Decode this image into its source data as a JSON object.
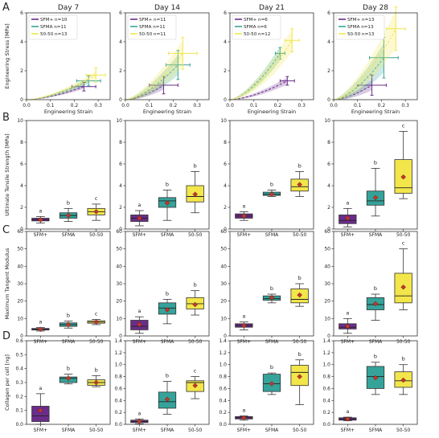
{
  "panel_letters": [
    "A",
    "B",
    "C",
    "D"
  ],
  "columns": [
    "Day 7",
    "Day 14",
    "Day 21",
    "Day 28"
  ],
  "groups": [
    "SFM+",
    "SFMA",
    "50-50"
  ],
  "colors": {
    "SFM+": "#6b2c8a",
    "SFMA": "#35a39a",
    "50-50": "#f2e64a",
    "mean_marker": "#c0392b",
    "axis": "#333333"
  },
  "chart_data": [
    {
      "panel": "A",
      "type": "line",
      "xlabel": "Engineering Strain",
      "ylabel": "Engineering Stress [MPa]",
      "xlim": [
        0,
        0.35
      ],
      "ylim": [
        0,
        6
      ],
      "xticks": [
        "0.0",
        "0.1",
        "0.2",
        "0.3"
      ],
      "yticks": [
        "0",
        "2",
        "4",
        "6"
      ],
      "subplots": [
        {
          "title": "Day 7",
          "legend": [
            "SFM+ n=10",
            "SFMA n=11",
            "50-50 n=13"
          ],
          "series": [
            {
              "name": "SFM+",
              "end": {
                "x": 0.24,
                "y": 0.9,
                "xerr": 0.05,
                "yerr": 0.3
              },
              "band": 0.15
            },
            {
              "name": "SFMA",
              "end": {
                "x": 0.26,
                "y": 1.3,
                "xerr": 0.05,
                "yerr": 0.35
              },
              "band": 0.2
            },
            {
              "name": "50-50",
              "end": {
                "x": 0.29,
                "y": 1.7,
                "xerr": 0.04,
                "yerr": 0.5
              },
              "band": 0.25
            }
          ]
        },
        {
          "title": "Day 14",
          "legend": [
            "SFM+ n=11",
            "SFMA n=11",
            "50-50 n=11"
          ],
          "series": [
            {
              "name": "SFM+",
              "end": {
                "x": 0.16,
                "y": 1.0,
                "xerr": 0.06,
                "yerr": 0.6
              },
              "band": 0.3
            },
            {
              "name": "SFMA",
              "end": {
                "x": 0.22,
                "y": 2.4,
                "xerr": 0.05,
                "yerr": 1.0
              },
              "band": 0.7
            },
            {
              "name": "50-50",
              "end": {
                "x": 0.24,
                "y": 3.2,
                "xerr": 0.06,
                "yerr": 1.1
              },
              "band": 0.9
            }
          ]
        },
        {
          "title": "Day 21",
          "legend": [
            "SFM+ n=6",
            "SFMA n=6",
            "50-50 n=12"
          ],
          "series": [
            {
              "name": "SFM+",
              "end": {
                "x": 0.24,
                "y": 1.3,
                "xerr": 0.03,
                "yerr": 0.3
              },
              "band": 0.25
            },
            {
              "name": "SFMA",
              "end": {
                "x": 0.21,
                "y": 3.2,
                "xerr": 0.02,
                "yerr": 0.4
              },
              "band": 0.5
            },
            {
              "name": "50-50",
              "end": {
                "x": 0.26,
                "y": 4.1,
                "xerr": 0.03,
                "yerr": 0.8
              },
              "band": 0.8
            }
          ]
        },
        {
          "title": "Day 28",
          "legend": [
            "SFM+ n=13",
            "SFMA n=13",
            "50-50 n=13"
          ],
          "series": [
            {
              "name": "SFM+",
              "end": {
                "x": 0.16,
                "y": 1.0,
                "xerr": 0.06,
                "yerr": 0.7
              },
              "band": 0.35
            },
            {
              "name": "SFMA",
              "end": {
                "x": 0.21,
                "y": 2.9,
                "xerr": 0.06,
                "yerr": 1.4
              },
              "band": 1.0
            },
            {
              "name": "50-50",
              "end": {
                "x": 0.26,
                "y": 4.9,
                "xerr": 0.04,
                "yerr": 1.5
              },
              "band": 1.3
            }
          ]
        }
      ]
    },
    {
      "panel": "B",
      "type": "box",
      "ylabel": "Ultimate Tensile Strength [MPa]",
      "ylim": [
        0,
        10
      ],
      "yticks": [
        "0",
        "2",
        "4",
        "6",
        "8",
        "10"
      ],
      "subplots": [
        {
          "title": "Day 7",
          "boxes": [
            {
              "group": "SFM+",
              "whislo": 0.55,
              "q1": 0.75,
              "med": 0.85,
              "q3": 1.0,
              "whishi": 1.15,
              "mean": 0.85,
              "letter": "a"
            },
            {
              "group": "SFMA",
              "whislo": 0.7,
              "q1": 1.0,
              "med": 1.25,
              "q3": 1.5,
              "whishi": 1.9,
              "mean": 1.25,
              "letter": "b"
            },
            {
              "group": "50-50",
              "whislo": 0.8,
              "q1": 1.3,
              "med": 1.6,
              "q3": 1.9,
              "whishi": 2.3,
              "mean": 1.6,
              "letter": "c"
            }
          ]
        },
        {
          "title": "Day 14",
          "boxes": [
            {
              "group": "SFM+",
              "whislo": 0.3,
              "q1": 0.7,
              "med": 1.0,
              "q3": 1.3,
              "whishi": 1.7,
              "mean": 1.0,
              "letter": "a"
            },
            {
              "group": "SFMA",
              "whislo": 0.8,
              "q1": 2.0,
              "med": 2.6,
              "q3": 2.9,
              "whishi": 3.6,
              "mean": 2.4,
              "letter": "b"
            },
            {
              "group": "50-50",
              "whislo": 1.5,
              "q1": 2.5,
              "med": 3.0,
              "q3": 4.0,
              "whishi": 5.3,
              "mean": 3.2,
              "letter": "b"
            }
          ]
        },
        {
          "title": "Day 21",
          "boxes": [
            {
              "group": "SFM+",
              "whislo": 0.8,
              "q1": 1.0,
              "med": 1.2,
              "q3": 1.4,
              "whishi": 1.6,
              "mean": 1.2,
              "letter": "a"
            },
            {
              "group": "SFMA",
              "whislo": 3.0,
              "q1": 3.1,
              "med": 3.2,
              "q3": 3.4,
              "whishi": 3.6,
              "mean": 3.2,
              "letter": "b"
            },
            {
              "group": "50-50",
              "whislo": 3.0,
              "q1": 3.5,
              "med": 3.9,
              "q3": 4.6,
              "whishi": 5.3,
              "mean": 4.1,
              "letter": "b"
            }
          ]
        },
        {
          "title": "Day 28",
          "boxes": [
            {
              "group": "SFM+",
              "whislo": 0.2,
              "q1": 0.5,
              "med": 0.8,
              "q3": 1.3,
              "whishi": 1.9,
              "mean": 1.0,
              "letter": "a"
            },
            {
              "group": "SFMA",
              "whislo": 1.2,
              "q1": 2.2,
              "med": 2.6,
              "q3": 3.5,
              "whishi": 5.6,
              "mean": 2.9,
              "letter": "b"
            },
            {
              "group": "50-50",
              "whislo": 2.8,
              "q1": 3.3,
              "med": 3.8,
              "q3": 6.4,
              "whishi": 9.0,
              "mean": 4.8,
              "letter": "c"
            }
          ]
        }
      ]
    },
    {
      "panel": "C",
      "type": "box",
      "ylabel": "Maximum Tangent Modulus",
      "ylim": [
        0,
        60
      ],
      "yticks": [
        "0",
        "10",
        "20",
        "30",
        "40",
        "50",
        "60"
      ],
      "subplots": [
        {
          "title": "Day 7",
          "boxes": [
            {
              "group": "SFM+",
              "whislo": 2.8,
              "q1": 3.4,
              "med": 3.8,
              "q3": 4.3,
              "whishi": 4.8,
              "mean": 3.8,
              "letter": "a"
            },
            {
              "group": "SFMA",
              "whislo": 4.5,
              "q1": 5.5,
              "med": 6.5,
              "q3": 7.5,
              "whishi": 8.5,
              "mean": 6.5,
              "letter": "b"
            },
            {
              "group": "50-50",
              "whislo": 6.5,
              "q1": 7.3,
              "med": 8.0,
              "q3": 8.7,
              "whishi": 9.5,
              "mean": 8.0,
              "letter": "c"
            }
          ]
        },
        {
          "title": "Day 14",
          "boxes": [
            {
              "group": "SFM+",
              "whislo": 1.5,
              "q1": 3.5,
              "med": 5.5,
              "q3": 9.0,
              "whishi": 11.0,
              "mean": 6.5,
              "letter": "a"
            },
            {
              "group": "SFMA",
              "whislo": 7.0,
              "q1": 12.5,
              "med": 16.0,
              "q3": 19.0,
              "whishi": 21.0,
              "mean": 15.0,
              "letter": "b"
            },
            {
              "group": "50-50",
              "whislo": 12.0,
              "q1": 15.5,
              "med": 18.5,
              "q3": 22.0,
              "whishi": 26.0,
              "mean": 18.0,
              "letter": "b"
            }
          ]
        },
        {
          "title": "Day 21",
          "boxes": [
            {
              "group": "SFM+",
              "whislo": 3.5,
              "q1": 5.0,
              "med": 6.0,
              "q3": 7.0,
              "whishi": 8.0,
              "mean": 6.0,
              "letter": "a"
            },
            {
              "group": "SFMA",
              "whislo": 19.0,
              "q1": 20.5,
              "med": 21.5,
              "q3": 23.0,
              "whishi": 24.0,
              "mean": 22.0,
              "letter": "b"
            },
            {
              "group": "50-50",
              "whislo": 17.0,
              "q1": 19.0,
              "med": 21.0,
              "q3": 27.0,
              "whishi": 30.0,
              "mean": 23.5,
              "letter": "b"
            }
          ]
        },
        {
          "title": "Day 28",
          "boxes": [
            {
              "group": "SFM+",
              "whislo": 1.5,
              "q1": 4.0,
              "med": 5.0,
              "q3": 7.0,
              "whishi": 10.0,
              "mean": 5.5,
              "letter": "a"
            },
            {
              "group": "SFMA",
              "whislo": 9.0,
              "q1": 15.0,
              "med": 18.0,
              "q3": 22.0,
              "whishi": 24.0,
              "mean": 18.5,
              "letter": "b"
            },
            {
              "group": "50-50",
              "whislo": 15.0,
              "q1": 19.0,
              "med": 23.0,
              "q3": 36.0,
              "whishi": 50.0,
              "mean": 28.0,
              "letter": "c"
            }
          ]
        }
      ]
    },
    {
      "panel": "D",
      "type": "box",
      "ylabel": "Collagen per cell [ng]",
      "xticks": [
        "SFM+",
        "SFMA",
        "50-50"
      ],
      "subplots": [
        {
          "title": "Day 7",
          "ylim": [
            0,
            0.6
          ],
          "yticks": [
            "0.0",
            "0.1",
            "0.2",
            "0.3",
            "0.4",
            "0.5",
            "0.6"
          ],
          "boxes": [
            {
              "group": "SFM+",
              "whislo": 0.0,
              "q1": 0.02,
              "med": 0.06,
              "q3": 0.13,
              "whishi": 0.22,
              "mean": 0.1,
              "letter": "a"
            },
            {
              "group": "SFMA",
              "whislo": 0.29,
              "q1": 0.3,
              "med": 0.33,
              "q3": 0.34,
              "whishi": 0.36,
              "mean": 0.33,
              "letter": "b"
            },
            {
              "group": "50-50",
              "whislo": 0.27,
              "q1": 0.28,
              "med": 0.3,
              "q3": 0.32,
              "whishi": 0.35,
              "mean": 0.3,
              "letter": "b"
            }
          ]
        },
        {
          "title": "Day 14",
          "ylim": [
            0,
            1.4
          ],
          "yticks": [
            "0.0",
            "0.2",
            "0.4",
            "0.6",
            "0.8",
            "1.0",
            "1.2",
            "1.4"
          ],
          "boxes": [
            {
              "group": "SFM+",
              "whislo": 0.01,
              "q1": 0.03,
              "med": 0.05,
              "q3": 0.07,
              "whishi": 0.09,
              "mean": 0.05,
              "letter": "a"
            },
            {
              "group": "SFMA",
              "whislo": 0.17,
              "q1": 0.27,
              "med": 0.38,
              "q3": 0.54,
              "whishi": 0.72,
              "mean": 0.42,
              "letter": "b"
            },
            {
              "group": "50-50",
              "whislo": 0.43,
              "q1": 0.55,
              "med": 0.7,
              "q3": 0.73,
              "whishi": 0.8,
              "mean": 0.65,
              "letter": "c"
            }
          ]
        },
        {
          "title": "Day 21",
          "ylim": [
            0,
            1.4
          ],
          "yticks": [
            "0.0",
            "0.2",
            "0.4",
            "0.6",
            "0.8",
            "1.0",
            "1.2",
            "1.4"
          ],
          "boxes": [
            {
              "group": "SFM+",
              "whislo": 0.07,
              "q1": 0.09,
              "med": 0.11,
              "q3": 0.13,
              "whishi": 0.14,
              "mean": 0.11,
              "letter": "a"
            },
            {
              "group": "SFMA",
              "whislo": 0.5,
              "q1": 0.55,
              "med": 0.68,
              "q3": 0.84,
              "whishi": 0.86,
              "mean": 0.68,
              "letter": "b"
            },
            {
              "group": "50-50",
              "whislo": 0.33,
              "q1": 0.65,
              "med": 0.87,
              "q3": 0.99,
              "whishi": 1.08,
              "mean": 0.8,
              "letter": "b"
            }
          ]
        },
        {
          "title": "Day 28",
          "ylim": [
            0,
            1.4
          ],
          "yticks": [
            "0.0",
            "0.2",
            "0.4",
            "0.6",
            "0.8",
            "1.0",
            "1.2",
            "1.4"
          ],
          "boxes": [
            {
              "group": "SFM+",
              "whislo": 0.06,
              "q1": 0.07,
              "med": 0.09,
              "q3": 0.11,
              "whishi": 0.12,
              "mean": 0.09,
              "letter": "a"
            },
            {
              "group": "SFMA",
              "whislo": 0.5,
              "q1": 0.6,
              "med": 0.8,
              "q3": 0.97,
              "whishi": 1.04,
              "mean": 0.78,
              "letter": "b"
            },
            {
              "group": "50-50",
              "whislo": 0.5,
              "q1": 0.62,
              "med": 0.73,
              "q3": 0.88,
              "whishi": 1.0,
              "mean": 0.74,
              "letter": "b"
            }
          ]
        }
      ]
    }
  ]
}
